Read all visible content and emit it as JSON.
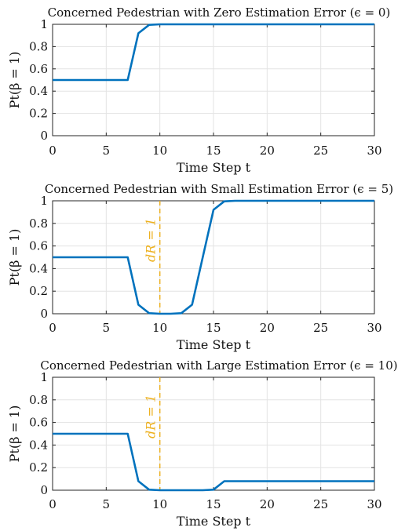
{
  "chart_data": [
    {
      "type": "line",
      "title": "Concerned Pedestrian with Zero Estimation Error (ϵ = 0)",
      "xlabel": "Time Step t",
      "ylabel": "Pt(β = 1)",
      "xlim": [
        0,
        30
      ],
      "ylim": [
        0,
        1
      ],
      "xticks": [
        "0",
        "5",
        "10",
        "15",
        "20",
        "25",
        "30"
      ],
      "yticks": [
        "0",
        "0.2",
        "0.4",
        "0.6",
        "0.8",
        "1"
      ],
      "grid": true,
      "color": "#0072BD",
      "x": [
        0,
        1,
        2,
        3,
        4,
        5,
        6,
        7,
        8,
        9,
        10,
        11,
        12,
        13,
        14,
        15,
        16,
        17,
        18,
        19,
        20,
        21,
        22,
        23,
        24,
        25,
        26,
        27,
        28,
        29,
        30
      ],
      "y": [
        0.5,
        0.5,
        0.5,
        0.5,
        0.5,
        0.5,
        0.5,
        0.5,
        0.92,
        0.995,
        1,
        1,
        1,
        1,
        1,
        1,
        1,
        1,
        1,
        1,
        1,
        1,
        1,
        1,
        1,
        1,
        1,
        1,
        1,
        1,
        1
      ],
      "annotation": null
    },
    {
      "type": "line",
      "title": "Concerned Pedestrian with Small Estimation Error (ϵ = 5)",
      "xlabel": "Time Step t",
      "ylabel": "Pt(β = 1)",
      "xlim": [
        0,
        30
      ],
      "ylim": [
        0,
        1
      ],
      "xticks": [
        "0",
        "5",
        "10",
        "15",
        "20",
        "25",
        "30"
      ],
      "yticks": [
        "0",
        "0.2",
        "0.4",
        "0.6",
        "0.8",
        "1"
      ],
      "grid": true,
      "color": "#0072BD",
      "x": [
        0,
        1,
        2,
        3,
        4,
        5,
        6,
        7,
        8,
        9,
        10,
        11,
        12,
        13,
        14,
        15,
        16,
        17,
        18,
        19,
        20,
        21,
        22,
        23,
        24,
        25,
        26,
        27,
        28,
        29,
        30
      ],
      "y": [
        0.5,
        0.5,
        0.5,
        0.5,
        0.5,
        0.5,
        0.5,
        0.5,
        0.08,
        0.005,
        0,
        0,
        0.005,
        0.08,
        0.5,
        0.92,
        0.995,
        1,
        1,
        1,
        1,
        1,
        1,
        1,
        1,
        1,
        1,
        1,
        1,
        1,
        1
      ],
      "annotation": {
        "x": 10,
        "label": "dR = 1",
        "color": "#EDB120"
      }
    },
    {
      "type": "line",
      "title": "Concerned Pedestrian with Large Estimation Error (ϵ = 10)",
      "xlabel": "Time Step t",
      "ylabel": "Pt(β = 1)",
      "xlim": [
        0,
        30
      ],
      "ylim": [
        0,
        1
      ],
      "xticks": [
        "0",
        "5",
        "10",
        "15",
        "20",
        "25",
        "30"
      ],
      "yticks": [
        "0",
        "0.2",
        "0.4",
        "0.6",
        "0.8",
        "1"
      ],
      "grid": true,
      "color": "#0072BD",
      "x": [
        0,
        1,
        2,
        3,
        4,
        5,
        6,
        7,
        8,
        9,
        10,
        11,
        12,
        13,
        14,
        15,
        16,
        17,
        18,
        19,
        20,
        21,
        22,
        23,
        24,
        25,
        26,
        27,
        28,
        29,
        30
      ],
      "y": [
        0.5,
        0.5,
        0.5,
        0.5,
        0.5,
        0.5,
        0.5,
        0.5,
        0.08,
        0.005,
        0,
        0,
        0,
        0,
        0,
        0.005,
        0.08,
        0.08,
        0.08,
        0.08,
        0.08,
        0.08,
        0.08,
        0.08,
        0.08,
        0.08,
        0.08,
        0.08,
        0.08,
        0.08,
        0.08
      ],
      "annotation": {
        "x": 10,
        "label": "dR = 1",
        "color": "#EDB120"
      }
    }
  ]
}
